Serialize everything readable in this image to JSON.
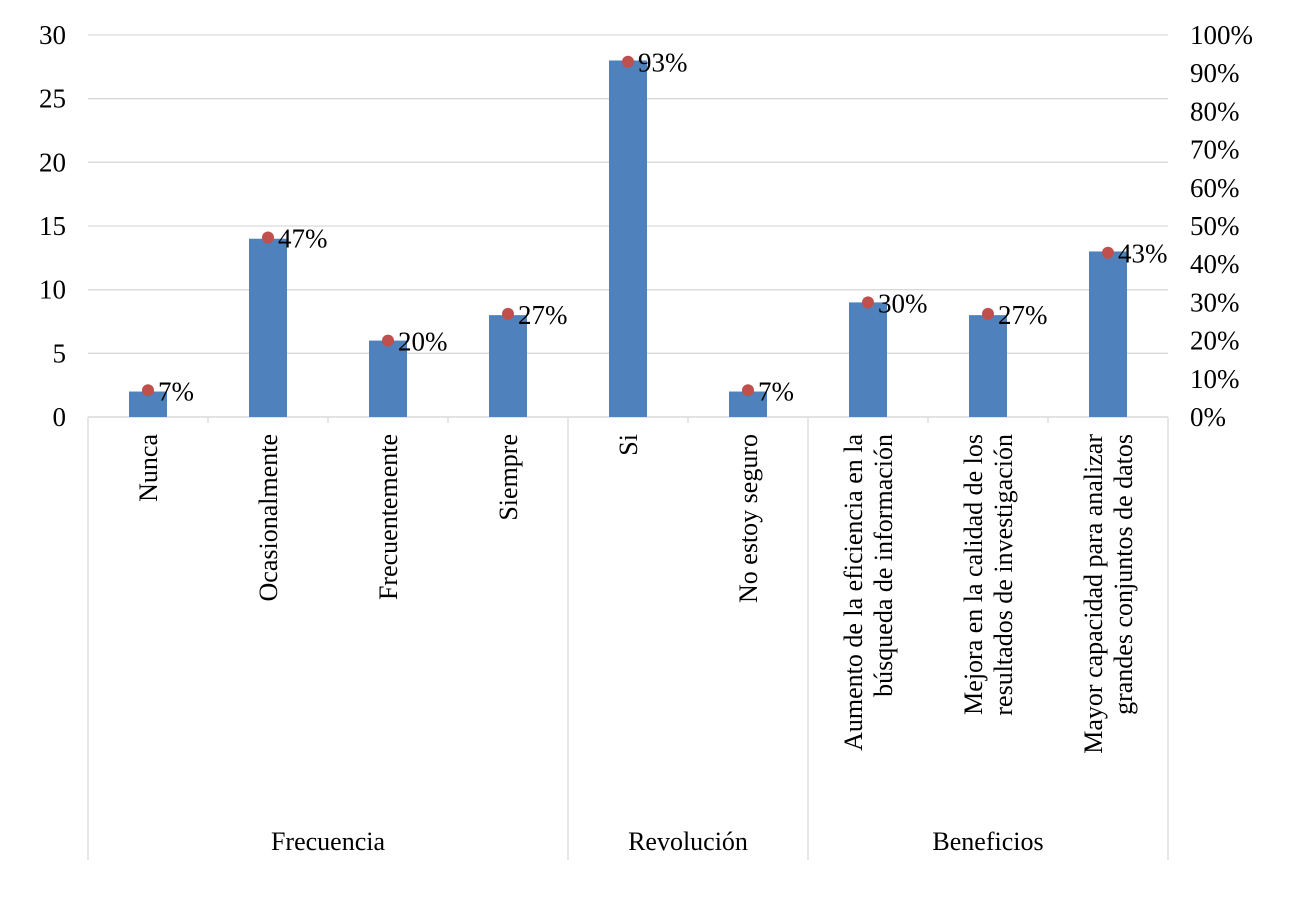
{
  "chart_data": {
    "type": "bar",
    "title": "",
    "xlabel": "",
    "ylabel": "",
    "ylim": [
      0,
      30
    ],
    "y2lim": [
      0,
      1
    ],
    "yticks": [
      "0",
      "5",
      "10",
      "15",
      "20",
      "25",
      "30"
    ],
    "y2ticks": [
      "0%",
      "10%",
      "20%",
      "30%",
      "40%",
      "50%",
      "60%",
      "70%",
      "80%",
      "90%",
      "100%"
    ],
    "grid": true,
    "legend": "none",
    "groups": [
      {
        "label": "Frecuencia",
        "count": 4
      },
      {
        "label": "Revolución",
        "count": 2
      },
      {
        "label": "Beneficios",
        "count": 3
      }
    ],
    "categories": [
      [
        "Nunca"
      ],
      [
        "Ocasionalmente"
      ],
      [
        "Frecuentemente"
      ],
      [
        "Siempre"
      ],
      [
        "Si"
      ],
      [
        "No estoy seguro"
      ],
      [
        "Aumento de la eficiencia en la",
        "búsqueda de información"
      ],
      [
        "Mejora en la calidad de los",
        "resultados de investigación"
      ],
      [
        "Mayor capacidad para analizar",
        "grandes conjuntos de datos"
      ]
    ],
    "series": [
      {
        "type": "bar",
        "axis": "left",
        "values": [
          2,
          14,
          6,
          8,
          28,
          2,
          9,
          8,
          13
        ]
      },
      {
        "type": "marker",
        "axis": "right",
        "values": [
          0.07,
          0.47,
          0.2,
          0.27,
          0.93,
          0.07,
          0.3,
          0.27,
          0.43
        ],
        "labels": [
          "7%",
          "47%",
          "20%",
          "27%",
          "93%",
          "7%",
          "30%",
          "27%",
          "43%"
        ]
      }
    ],
    "colors": {
      "bar": "#4F81BD",
      "marker": "#C0504D",
      "grid": "#D9D9D9"
    }
  }
}
